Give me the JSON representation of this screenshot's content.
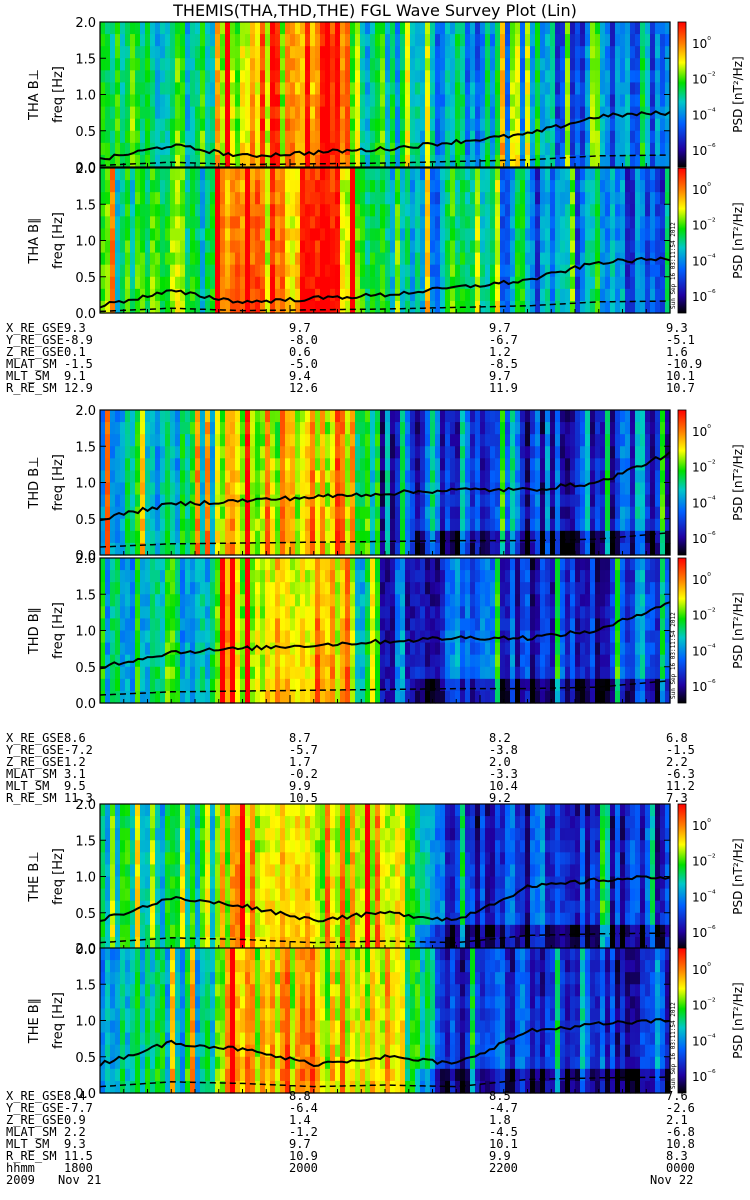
{
  "title": "THEMIS(THA,THD,THE) FGL Wave Survey Plot (Lin)",
  "colorbar": {
    "label": "PSD [nT²/Hz]",
    "ticks": [
      "10⁰",
      "10⁻²",
      "10⁻⁴",
      "10⁻⁶"
    ],
    "colors": [
      "#ff0000",
      "#ff8000",
      "#ffff00",
      "#00e000",
      "#00c8c8",
      "#0060ff",
      "#2000a0",
      "#000000"
    ]
  },
  "stamp": "Sun Sep 16 03:11:54 2012",
  "chart_data": [
    {
      "type": "heatmap",
      "probe": "THA",
      "panels": [
        {
          "ylabel": "THA B⊥",
          "y_axis": "freq [Hz]",
          "ylim": [
            0,
            2.0
          ],
          "yticks": [
            "0.0",
            "0.5",
            "1.0",
            "1.5",
            "2.0"
          ],
          "solid_line_hz_start_to_end": [
            0.1,
            0.3,
            0.15,
            0.2,
            0.25,
            0.35,
            0.45,
            0.7,
            0.75
          ]
        },
        {
          "ylabel": "THA B∥",
          "y_axis": "freq [Hz]",
          "ylim": [
            0,
            2.0
          ],
          "yticks": [
            "0.0",
            "0.5",
            "1.0",
            "1.5",
            "2.0"
          ],
          "solid_line_hz_start_to_end": [
            0.1,
            0.3,
            0.15,
            0.2,
            0.25,
            0.35,
            0.45,
            0.7,
            0.75
          ]
        }
      ]
    },
    {
      "type": "heatmap",
      "probe": "THD",
      "panels": [
        {
          "ylabel": "THD B⊥",
          "y_axis": "freq [Hz]",
          "ylim": [
            0,
            2.0
          ],
          "yticks": [
            "0.0",
            "0.5",
            "1.0",
            "1.5",
            "2.0"
          ],
          "solid_line_hz_start_to_end": [
            0.5,
            0.7,
            0.75,
            0.8,
            0.85,
            0.9,
            0.9,
            1.0,
            1.4
          ]
        },
        {
          "ylabel": "THD B∥",
          "y_axis": "freq [Hz]",
          "ylim": [
            0,
            2.0
          ],
          "yticks": [
            "0.0",
            "0.5",
            "1.0",
            "1.5",
            "2.0"
          ],
          "solid_line_hz_start_to_end": [
            0.5,
            0.7,
            0.75,
            0.8,
            0.85,
            0.9,
            0.9,
            1.0,
            1.4
          ]
        }
      ]
    },
    {
      "type": "heatmap",
      "probe": "THE",
      "panels": [
        {
          "ylabel": "THE B⊥",
          "y_axis": "freq [Hz]",
          "ylim": [
            0,
            2.0
          ],
          "yticks": [
            "0.0",
            "0.5",
            "1.0",
            "1.5",
            "2.0"
          ],
          "solid_line_hz_start_to_end": [
            0.4,
            0.7,
            0.6,
            0.4,
            0.5,
            0.4,
            0.85,
            0.95,
            1.0
          ]
        },
        {
          "ylabel": "THE B∥",
          "y_axis": "freq [Hz]",
          "ylim": [
            0,
            2.0
          ],
          "yticks": [
            "0.0",
            "0.5",
            "1.0",
            "1.5",
            "2.0"
          ],
          "solid_line_hz_start_to_end": [
            0.4,
            0.7,
            0.6,
            0.4,
            0.5,
            0.4,
            0.85,
            0.95,
            1.0
          ]
        }
      ]
    }
  ],
  "ephemeris": [
    {
      "rows": [
        {
          "label": "X_RE_GSE",
          "values": [
            "9.3",
            "9.7",
            "9.7",
            "9.3"
          ]
        },
        {
          "label": "Y_RE_GSE",
          "values": [
            "-8.9",
            "-8.0",
            "-6.7",
            "-5.1"
          ]
        },
        {
          "label": "Z_RE_GSE",
          "values": [
            "0.1",
            "0.6",
            "1.2",
            "1.6"
          ]
        },
        {
          "label": "MLAT_SM",
          "values": [
            "-1.5",
            "-5.0",
            "-8.5",
            "-10.9"
          ]
        },
        {
          "label": "MLT_SM",
          "values": [
            "9.1",
            "9.4",
            "9.7",
            "10.1"
          ]
        },
        {
          "label": "R_RE_SM",
          "values": [
            "12.9",
            "12.6",
            "11.9",
            "10.7"
          ]
        }
      ]
    },
    {
      "rows": [
        {
          "label": "X_RE_GSE",
          "values": [
            "8.6",
            "8.7",
            "8.2",
            "6.8"
          ]
        },
        {
          "label": "Y_RE_GSE",
          "values": [
            "-7.2",
            "-5.7",
            "-3.8",
            "-1.5"
          ]
        },
        {
          "label": "Z_RE_GSE",
          "values": [
            "1.2",
            "1.7",
            "2.0",
            "2.2"
          ]
        },
        {
          "label": "MLAT_SM",
          "values": [
            "3.1",
            "-0.2",
            "-3.3",
            "-6.3"
          ]
        },
        {
          "label": "MLT_SM",
          "values": [
            "9.5",
            "9.9",
            "10.4",
            "11.2"
          ]
        },
        {
          "label": "R_RE_SM",
          "values": [
            "11.3",
            "10.5",
            "9.2",
            "7.3"
          ]
        }
      ]
    },
    {
      "rows": [
        {
          "label": "X_RE_GSE",
          "values": [
            "8.4",
            "8.8",
            "8.5",
            "7.6"
          ]
        },
        {
          "label": "Y_RE_GSE",
          "values": [
            "-7.7",
            "-6.4",
            "-4.7",
            "-2.6"
          ]
        },
        {
          "label": "Z_RE_GSE",
          "values": [
            "0.9",
            "1.4",
            "1.8",
            "2.1"
          ]
        },
        {
          "label": "MLAT_SM",
          "values": [
            "2.2",
            "-1.2",
            "-4.5",
            "-6.8"
          ]
        },
        {
          "label": "MLT_SM",
          "values": [
            "9.3",
            "9.7",
            "10.1",
            "10.8"
          ]
        },
        {
          "label": "R_RE_SM",
          "values": [
            "11.5",
            "10.9",
            "9.9",
            "8.3"
          ]
        },
        {
          "label": "hhmm",
          "values": [
            "1800",
            "2000",
            "2200",
            "0000"
          ]
        }
      ]
    }
  ],
  "date_row": {
    "label": "2009",
    "start": "Nov 21",
    "end": "Nov 22"
  }
}
